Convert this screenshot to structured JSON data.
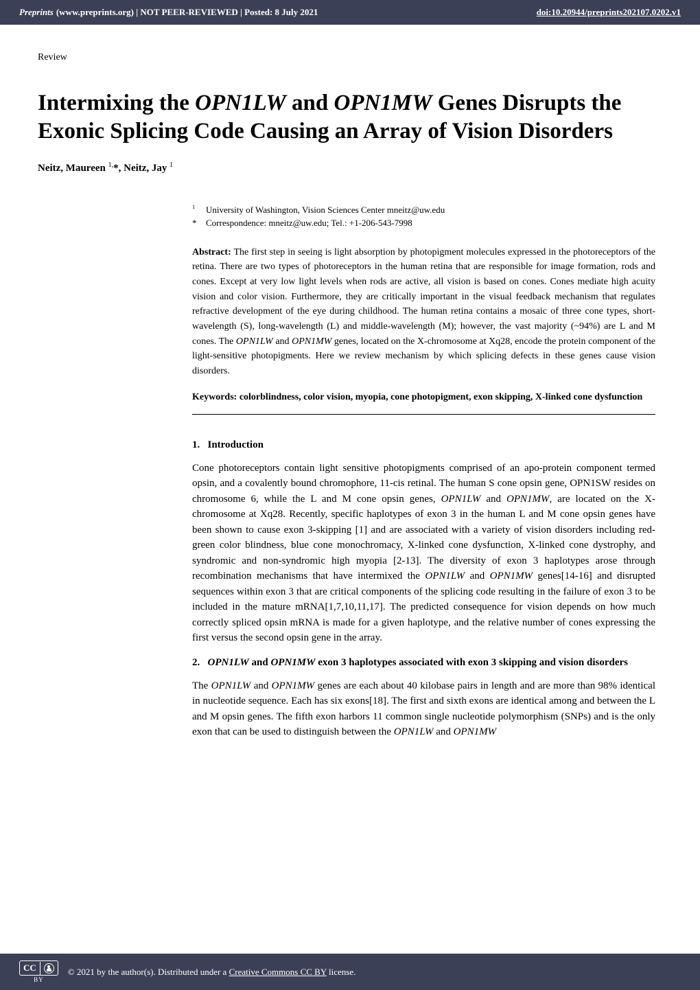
{
  "header": {
    "site_italic": "Preprints",
    "site_rest": " (www.preprints.org)  |  NOT PEER-REVIEWED  |  Posted: 8 July 2021",
    "doi": "doi:10.20944/preprints202107.0202.v1"
  },
  "article_type": "Review",
  "title_parts": {
    "p1": "Intermixing the ",
    "i1": "OPN1LW",
    "p2": " and ",
    "i2": "OPN1MW",
    "p3": " Genes Disrupts the Exonic Splicing Code Causing an Array of Vision Disorders"
  },
  "authors": "Neitz, Maureen 1,*, Neitz, Jay 1",
  "authors_html_sup1": "1,",
  "authors_html_sup2": "1",
  "affiliations": {
    "a1_marker": "1",
    "a1_text": "University of Washington, Vision Sciences Center mneitz@uw.edu",
    "corr_marker": "*",
    "corr_text": "Correspondence: mneitz@uw.edu; Tel.: +1-206-543-7998"
  },
  "abstract": {
    "label": "Abstract:",
    "text_pre": " The first step in seeing is light absorption by photopigment molecules expressed in the photoreceptors of the retina.   There are two types of photoreceptors in the human retina that are responsible for image formation, rods and cones.   Except at very low light levels when rods are active, all vision is based on cones.   Cones mediate high acuity vision and color vision.   Furthermore, they are critically important in the visual feedback mechanism that regulates refractive development of the eye during childhood. The human retina contains a mosaic of three cone types, short-wavelength (S), long-wavelength (L) and middle-wavelength (M); however, the vast majority (~94%) are L and M cones.   The ",
    "i1": "OPN1LW",
    "mid1": " and ",
    "i2": "OPN1MW",
    "text_post": " genes, located on the X-chromosome at Xq28, encode the protein component of the light-sensitive photopigments. Here we review mechanism by which splicing defects in these genes cause vision disorders."
  },
  "keywords": "Keywords: colorblindness, color vision, myopia, cone photopigment, exon skipping, X-linked cone dysfunction",
  "section1": {
    "num": "1.",
    "head": "Introduction",
    "p1_pre": "Cone photoreceptors contain light sensitive photopigments comprised of an apo-protein component termed opsin, and a covalently bound chromophore, 11-cis retinal. The human S cone opsin gene, OPN1SW resides on chromosome 6, while the L and M cone opsin genes, ",
    "p1_i1": "OPN1LW",
    "p1_mid1": " and ",
    "p1_i2": "OPN1MW",
    "p1_mid2": ", are located on the X-chromosome at Xq28. Recently, specific haplotypes of exon 3 in the human L and M cone opsin genes have been shown to cause exon 3-skipping [1] and are associated with a variety of vision disorders including red-green color blindness, blue cone monochromacy, X-linked cone dysfunction, X-linked cone dystrophy, and syndromic and non-syndromic high myopia [2-13]. The diversity of exon 3 haplotypes arose through recombination mechanisms that have intermixed the ",
    "p1_i3": "OPN1LW",
    "p1_mid3": " and ",
    "p1_i4": "OPN1MW",
    "p1_post": " genes[14-16] and disrupted sequences within exon 3 that are critical components of the splicing code resulting in the failure of exon 3 to be included in the mature mRNA[1,7,10,11,17]. The predicted consequence for vision depends on how much correctly spliced opsin mRNA is made for a given haplotype, and the relative number of cones expressing the first versus the second opsin gene in the array."
  },
  "section2": {
    "num": "2.",
    "head_i1": "OPN1LW",
    "head_mid": " and ",
    "head_i2": "OPN1MW",
    "head_post": " exon 3 haplotypes associated with exon 3 skipping and vision disorders",
    "p1_pre": "The ",
    "p1_i1": "OPN1LW",
    "p1_mid1": " and ",
    "p1_i2": "OPN1MW",
    "p1_mid2": " genes are each about 40 kilobase pairs in length and are more than 98% identical in nucleotide sequence.   Each has six exons[18].   The first and sixth exons are identical among and between the L and M opsin genes. The fifth exon harbors 11 common single nucleotide polymorphism (SNPs) and is the only exon that can be used to distinguish between the ",
    "p1_i3": "OPN1LW",
    "p1_mid3": " and ",
    "p1_i4": "OPN1MW"
  },
  "footer": {
    "cc_label": "CC",
    "by_label": "BY",
    "text_pre": "©  2021 by the author(s). Distributed under a ",
    "link": "Creative Commons CC BY",
    "text_post": " license."
  },
  "colors": {
    "header_bg": "#3c4056",
    "text": "#000000",
    "white": "#ffffff"
  }
}
